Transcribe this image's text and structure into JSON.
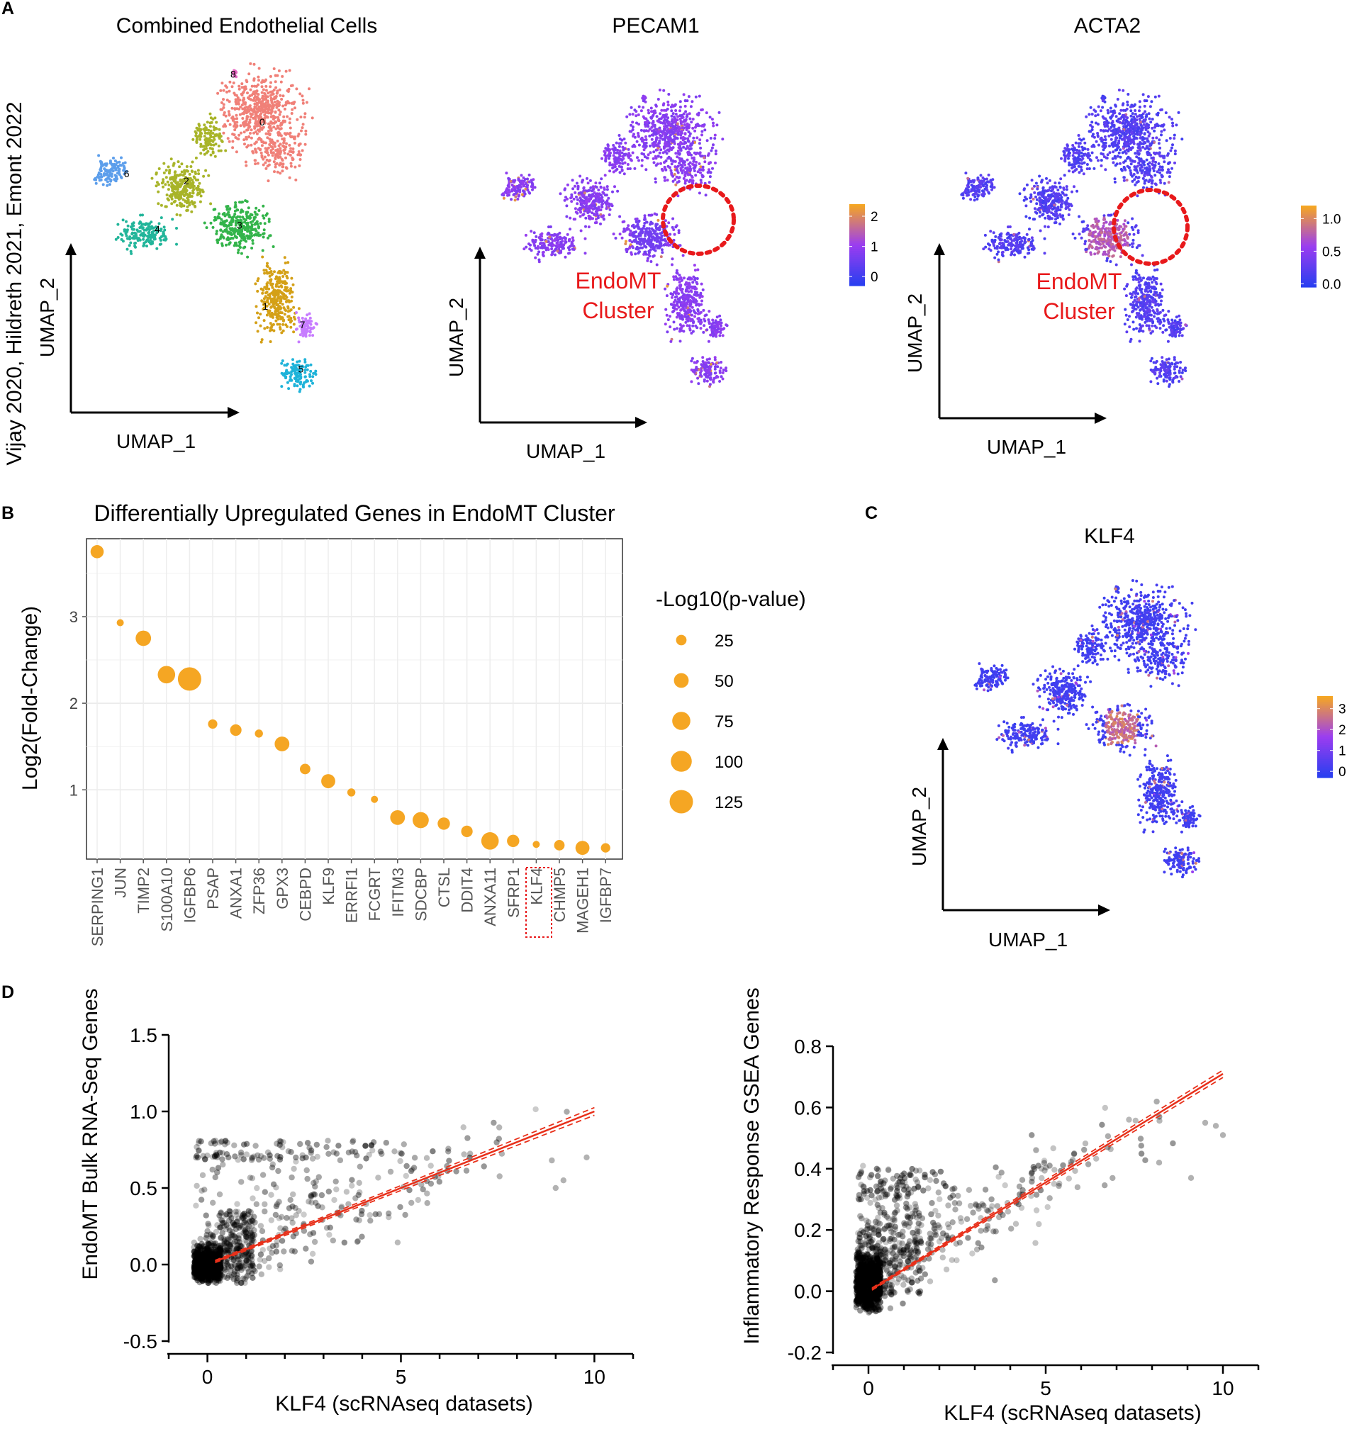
{
  "panel_letters": [
    "A",
    "B",
    "C",
    "D"
  ],
  "sidebar_label": "Vijay 2020, Hildreth 2021, Emont 2022",
  "umap_axes": {
    "x": "UMAP_1",
    "y": "UMAP_2"
  },
  "endomt_label": [
    "EndoMT",
    "Cluster"
  ],
  "colors": {
    "orange": "#F5A623",
    "umap_low": "#2A3FF0",
    "umap_mid": "#9B3DF0",
    "umap_high": "#F5A623",
    "highlight": "#E8191B",
    "fit_line": "#E8301A"
  },
  "chart_data": [
    {
      "id": "A1",
      "type": "scatter",
      "title": "Combined Endothelial Cells",
      "xlabel": "UMAP_1",
      "ylabel": "UMAP_2",
      "clusters": [
        {
          "label": "0",
          "color": "#F08078"
        },
        {
          "label": "1",
          "color": "#D4A017"
        },
        {
          "label": "2",
          "color": "#A8B429"
        },
        {
          "label": "3",
          "color": "#33B44A"
        },
        {
          "label": "4",
          "color": "#22B59A"
        },
        {
          "label": "5",
          "color": "#1FB3D9"
        },
        {
          "label": "6",
          "color": "#5C9EEB"
        },
        {
          "label": "7",
          "color": "#C77CFF"
        },
        {
          "label": "8",
          "color": "#E769C4"
        }
      ]
    },
    {
      "id": "A2",
      "type": "scatter",
      "title": "PECAM1",
      "xlabel": "UMAP_1",
      "ylabel": "UMAP_2",
      "colorbar_ticks": [
        "2",
        "1",
        "0"
      ],
      "colorbar_range": [
        -0.3,
        2.4
      ]
    },
    {
      "id": "A3",
      "type": "scatter",
      "title": "ACTA2",
      "xlabel": "UMAP_1",
      "ylabel": "UMAP_2",
      "colorbar_ticks": [
        "1.0",
        "0.5",
        "0.0"
      ],
      "colorbar_range": [
        -0.05,
        1.2
      ]
    },
    {
      "id": "B",
      "type": "scatter",
      "title": "Differentially Upregulated Genes in EndoMT Cluster",
      "ylabel": "Log2(Fold-Change)",
      "xlabel": "",
      "ylim": [
        0.2,
        3.9
      ],
      "yticks": [
        1,
        2,
        3
      ],
      "grid": true,
      "legend_title": "-Log10(p-value)",
      "legend_values": [
        25,
        50,
        75,
        100,
        125
      ],
      "highlighted_gene": "KLF4",
      "categories": [
        "SERPING1",
        "JUN",
        "TIMP2",
        "S100A10",
        "IGFBP6",
        "PSAP",
        "ANXA1",
        "ZFP36",
        "GPX3",
        "CEBPD",
        "KLF9",
        "ERRFI1",
        "FCGRT",
        "IFITM3",
        "SDCBP",
        "CTSL",
        "DDIT4",
        "ANXA11",
        "SFRP1",
        "KLF4",
        "CHMP5",
        "MAGEH1",
        "IGFBP7"
      ],
      "values": [
        3.75,
        2.93,
        2.75,
        2.33,
        2.28,
        1.76,
        1.69,
        1.65,
        1.53,
        1.24,
        1.1,
        0.97,
        0.89,
        0.68,
        0.65,
        0.61,
        0.52,
        0.41,
        0.41,
        0.37,
        0.36,
        0.33,
        0.33
      ],
      "pvalues": [
        40,
        10,
        55,
        70,
        125,
        20,
        30,
        15,
        50,
        25,
        45,
        15,
        10,
        50,
        60,
        35,
        30,
        70,
        35,
        8,
        25,
        45,
        20
      ]
    },
    {
      "id": "C",
      "type": "scatter",
      "title": "KLF4",
      "xlabel": "UMAP_1",
      "ylabel": "UMAP_2",
      "colorbar_ticks": [
        "3",
        "2",
        "1",
        "0"
      ],
      "colorbar_range": [
        -0.3,
        3.6
      ]
    },
    {
      "id": "D1",
      "type": "scatter",
      "xlabel": "KLF4 (scRNAseq datasets)",
      "ylabel": "EndoMT Bulk RNA-Seq Genes",
      "xlim": [
        -1,
        11
      ],
      "ylim": [
        -0.5,
        1.5
      ],
      "xticks": [
        0,
        5,
        10
      ],
      "yticks": [
        "-0.5",
        "0.0",
        "0.5",
        "1.0",
        "1.5"
      ],
      "fit": {
        "slope": 0.1,
        "intercept": 0.0,
        "x_range": [
          0.2,
          10
        ],
        "ci": 0.025
      }
    },
    {
      "id": "D2",
      "type": "scatter",
      "xlabel": "KLF4 (scRNAseq datasets)",
      "ylabel": "Inflammatory Response GSEA Genes",
      "xlim": [
        -1,
        11
      ],
      "ylim": [
        -0.2,
        0.8
      ],
      "xticks": [
        0,
        5,
        10
      ],
      "yticks": [
        "-0.2",
        "0.0",
        "0.2",
        "0.4",
        "0.6",
        "0.8"
      ],
      "fit": {
        "slope": 0.071,
        "intercept": 0.0,
        "x_range": [
          0.1,
          10
        ],
        "ci": 0.012
      }
    }
  ]
}
